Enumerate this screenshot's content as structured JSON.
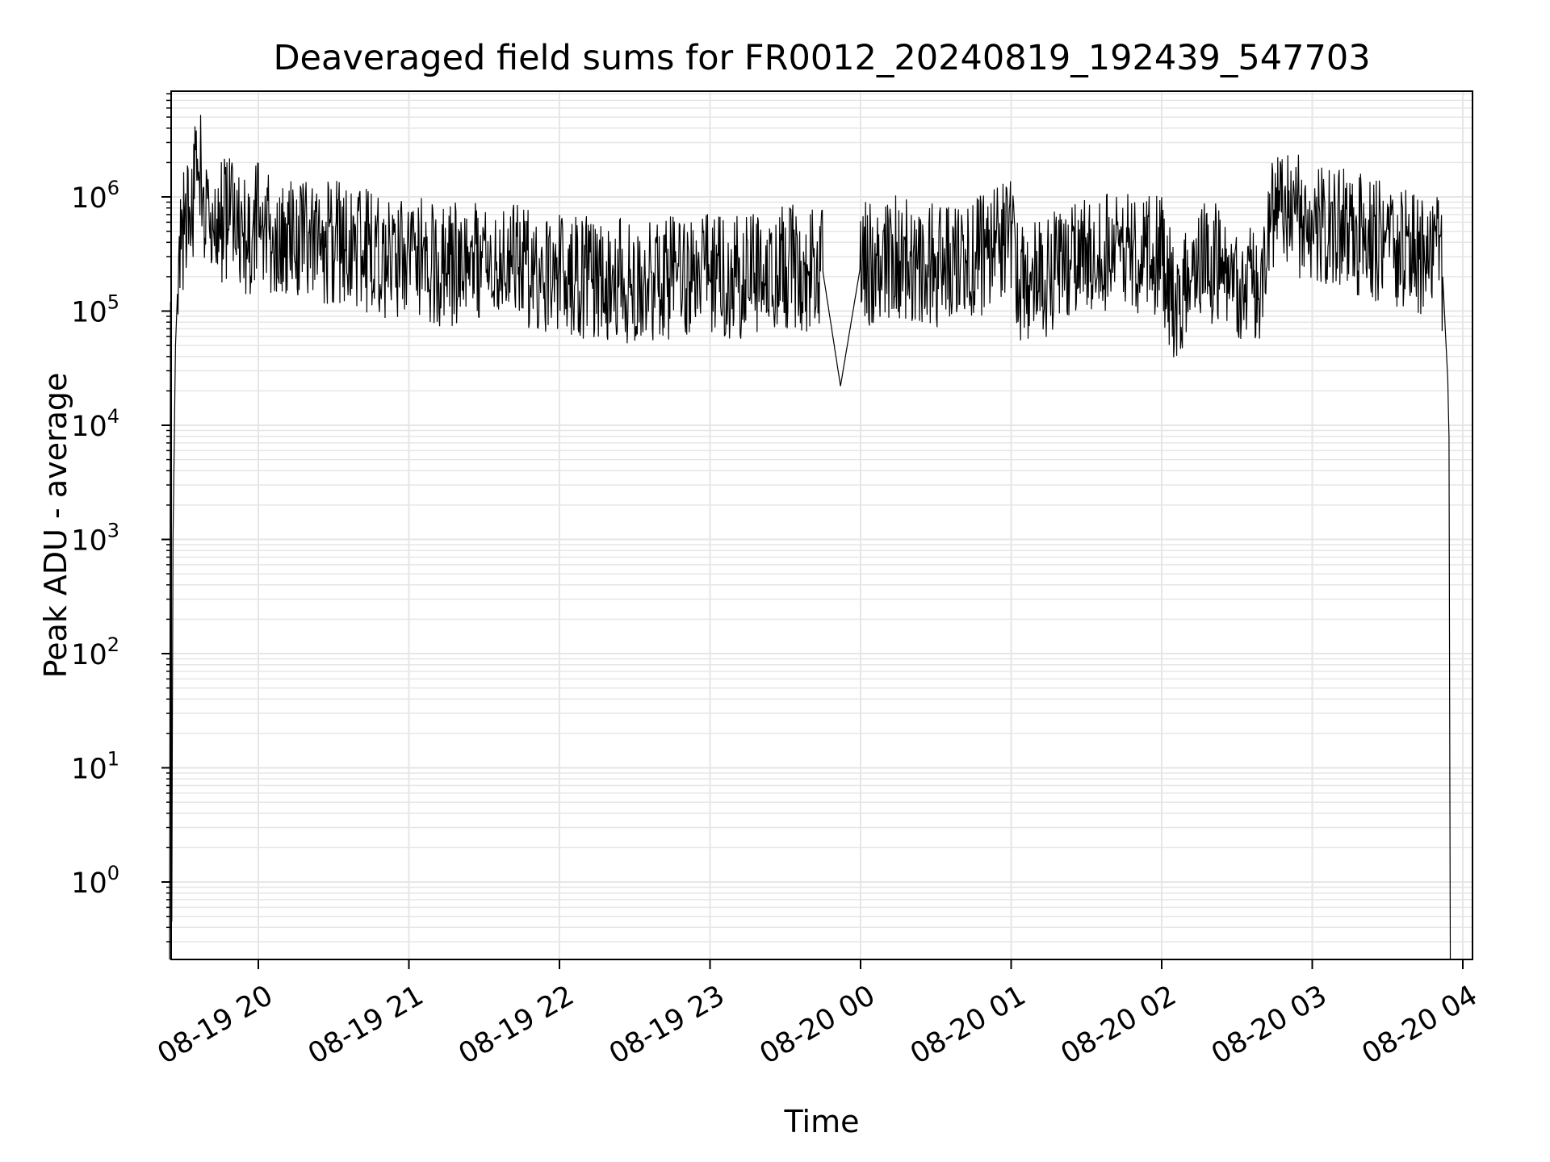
{
  "chart_data": {
    "type": "line",
    "title": "Deaveraged field sums for FR0012_20240819_192439_547703",
    "xlabel": "Time",
    "ylabel": "Peak ADU - average",
    "yscale": "log",
    "grid": true,
    "line_color": "#000000",
    "grid_color": "#e6e6e6",
    "xlim": [
      "2024-08-19 19:24",
      "2024-08-20 04:08"
    ],
    "ylim": [
      0.2,
      8000000
    ],
    "xticks": [
      "08-19 20",
      "08-19 21",
      "08-19 22",
      "08-19 23",
      "08-20 00",
      "08-20 01",
      "08-20 02",
      "08-20 03",
      "08-20 04"
    ],
    "yticks": [
      {
        "base": "10",
        "exp": "0",
        "value": 1
      },
      {
        "base": "10",
        "exp": "1",
        "value": 10
      },
      {
        "base": "10",
        "exp": "2",
        "value": 100
      },
      {
        "base": "10",
        "exp": "3",
        "value": 1000
      },
      {
        "base": "10",
        "exp": "4",
        "value": 10000
      },
      {
        "base": "10",
        "exp": "5",
        "value": 100000
      },
      {
        "base": "10",
        "exp": "6",
        "value": 1000000
      }
    ],
    "series": [
      {
        "x": [
          "2024-08-19 19:24:39",
          "2024-08-19 19:25:00",
          "2024-08-19 19:25:30",
          "2024-08-19 19:26:00",
          "2024-08-19 19:27:00",
          "2024-08-19 19:28:00",
          "2024-08-19 19:30:00",
          "2024-08-19 19:32:00",
          "2024-08-19 19:34:00",
          "2024-08-19 19:36:00",
          "2024-08-19 19:38:00",
          "2024-08-19 19:40:00",
          "2024-08-19 19:42:00",
          "2024-08-19 19:43:00",
          "2024-08-19 19:44:00",
          "2024-08-19 19:46:00",
          "2024-08-19 19:50:00",
          "2024-08-19 19:55:00",
          "2024-08-19 20:00:00",
          "2024-08-19 20:05:00",
          "2024-08-19 20:10:00",
          "2024-08-19 20:15:00",
          "2024-08-19 20:20:00",
          "2024-08-19 20:25:00",
          "2024-08-19 20:30:00",
          "2024-08-19 20:40:00",
          "2024-08-19 20:50:00",
          "2024-08-19 21:00:00",
          "2024-08-19 21:15:00",
          "2024-08-19 21:30:00",
          "2024-08-19 21:45:00",
          "2024-08-19 22:00:00",
          "2024-08-19 22:15:00",
          "2024-08-19 22:30:00",
          "2024-08-19 22:45:00",
          "2024-08-19 23:00:00",
          "2024-08-19 23:15:00",
          "2024-08-19 23:30:00",
          "2024-08-19 23:45:00",
          "2024-08-19 23:52:00",
          "2024-08-20 00:00:00",
          "2024-08-20 00:15:00",
          "2024-08-20 00:30:00",
          "2024-08-20 00:45:00",
          "2024-08-20 01:00:00",
          "2024-08-20 01:05:00",
          "2024-08-20 01:15:00",
          "2024-08-20 01:30:00",
          "2024-08-20 01:45:00",
          "2024-08-20 02:00:00",
          "2024-08-20 02:05:00",
          "2024-08-20 02:15:00",
          "2024-08-20 02:30:00",
          "2024-08-20 02:40:00",
          "2024-08-20 02:45:00",
          "2024-08-20 03:00:00",
          "2024-08-20 03:15:00",
          "2024-08-20 03:30:00",
          "2024-08-20 03:45:00",
          "2024-08-20 03:50:00",
          "2024-08-20 03:52:00",
          "2024-08-20 03:54:00",
          "2024-08-20 03:54:30",
          "2024-08-20 03:55:00"
        ],
        "y": [
          0.2,
          120000,
          0.45,
          1000,
          50000,
          200000,
          500000,
          900000,
          1000000,
          3700000,
          800000,
          600000,
          500000,
          400000,
          700000,
          600000,
          800000,
          400000,
          600000,
          500000,
          500000,
          400000,
          500000,
          400000,
          400000,
          350000,
          300000,
          300000,
          250000,
          300000,
          250000,
          200000,
          200000,
          180000,
          200000,
          200000,
          200000,
          250000,
          220000,
          22000,
          250000,
          300000,
          250000,
          300000,
          400000,
          150000,
          200000,
          300000,
          350000,
          300000,
          120000,
          300000,
          200000,
          150000,
          800000,
          600000,
          500000,
          400000,
          300000,
          300000,
          200000,
          25000,
          8000,
          0.2
        ]
      }
    ]
  }
}
